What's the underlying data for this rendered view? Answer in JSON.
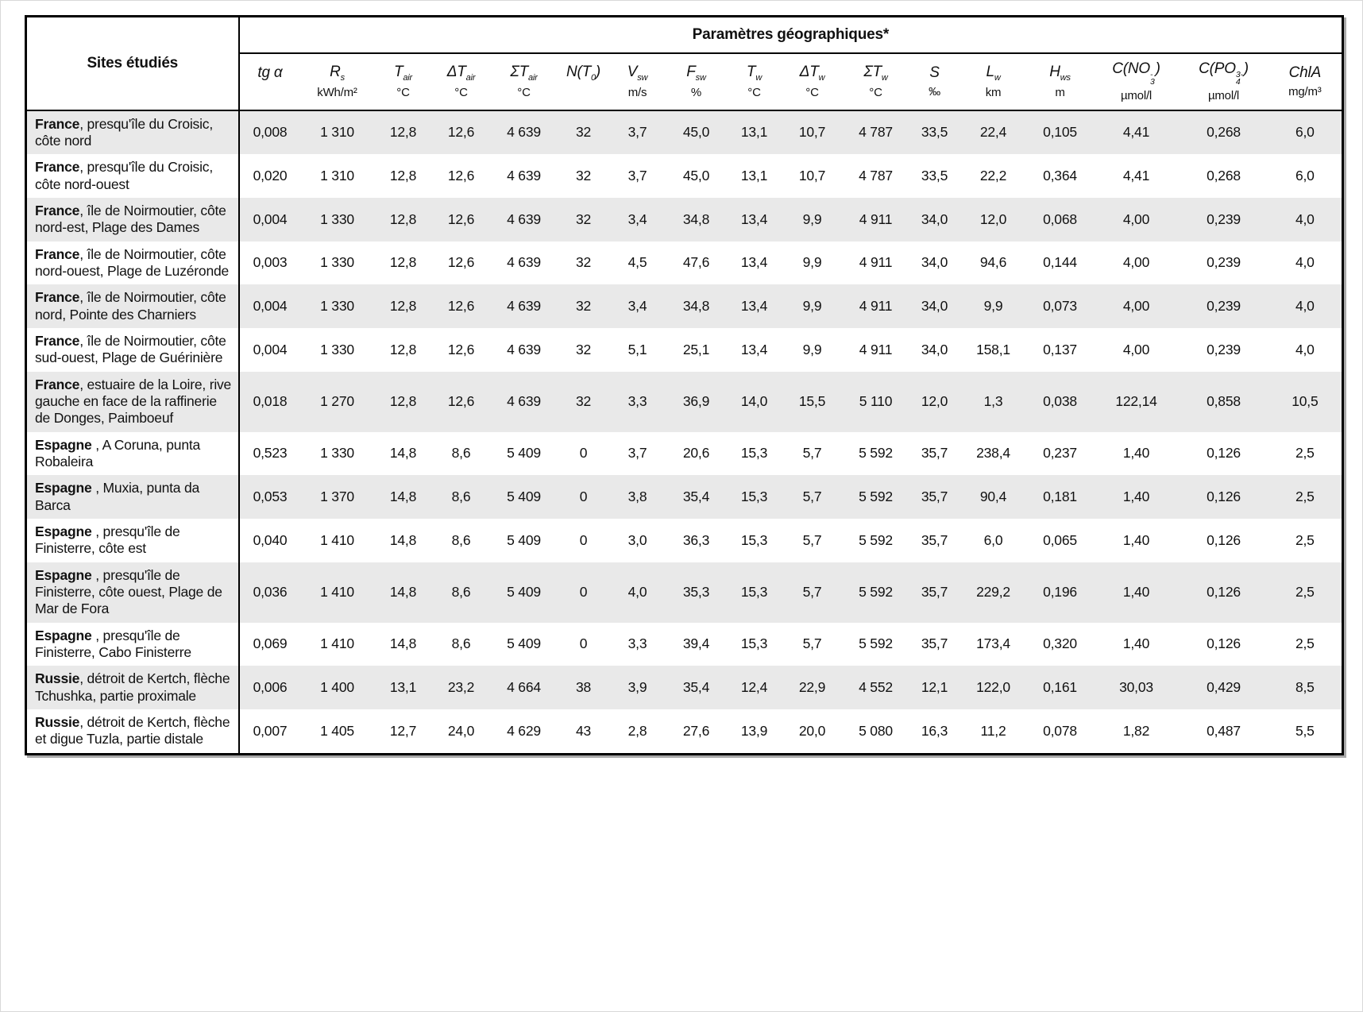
{
  "table": {
    "site_header": "Sites étudiés",
    "group_header": "Paramètres géographiques*",
    "columns": [
      {
        "name": "tg-alpha",
        "parts": [
          {
            "t": "tg α"
          }
        ],
        "unit": ""
      },
      {
        "name": "r-s",
        "parts": [
          {
            "t": "R"
          },
          {
            "sub": "s"
          }
        ],
        "unit": "kWh/m²"
      },
      {
        "name": "t-air",
        "parts": [
          {
            "t": "T"
          },
          {
            "sub": "air"
          }
        ],
        "unit": "°C"
      },
      {
        "name": "dt-air",
        "parts": [
          {
            "t": "ΔT"
          },
          {
            "sub": "air"
          }
        ],
        "unit": "°C"
      },
      {
        "name": "st-air",
        "parts": [
          {
            "t": "ΣT"
          },
          {
            "sub": "air"
          }
        ],
        "unit": "°C"
      },
      {
        "name": "n-t0",
        "parts": [
          {
            "t": "N(T"
          },
          {
            "sub": "0"
          },
          {
            "t": ")"
          }
        ],
        "unit": ""
      },
      {
        "name": "v-sw",
        "parts": [
          {
            "t": "V"
          },
          {
            "sub": "sw"
          }
        ],
        "unit": "m/s"
      },
      {
        "name": "f-sw",
        "parts": [
          {
            "t": "F"
          },
          {
            "sub": "sw"
          }
        ],
        "unit": "%"
      },
      {
        "name": "t-w",
        "parts": [
          {
            "t": "T"
          },
          {
            "sub": "w"
          }
        ],
        "unit": "°C"
      },
      {
        "name": "dt-w",
        "parts": [
          {
            "t": "ΔT"
          },
          {
            "sub": "w"
          }
        ],
        "unit": "°C"
      },
      {
        "name": "st-w",
        "parts": [
          {
            "t": "ΣT"
          },
          {
            "sub": "w"
          }
        ],
        "unit": "°C"
      },
      {
        "name": "s",
        "parts": [
          {
            "t": "S"
          }
        ],
        "unit": "‰"
      },
      {
        "name": "l-w",
        "parts": [
          {
            "t": "L"
          },
          {
            "sub": "w"
          }
        ],
        "unit": "km"
      },
      {
        "name": "h-ws",
        "parts": [
          {
            "t": "H"
          },
          {
            "sub": "ws"
          }
        ],
        "unit": "m"
      },
      {
        "name": "c-no3",
        "parts": [
          {
            "t": "C(NO"
          },
          {
            "stack": [
              "-",
              "3"
            ]
          },
          {
            "t": ")"
          }
        ],
        "unit": "µmol/l"
      },
      {
        "name": "c-po4",
        "parts": [
          {
            "t": "C(PO"
          },
          {
            "stack": [
              "3-",
              "4"
            ]
          },
          {
            "t": ")"
          }
        ],
        "unit": "µmol/l"
      },
      {
        "name": "chla",
        "parts": [
          {
            "t": "ChlA"
          }
        ],
        "unit": "mg/m³"
      }
    ],
    "rows": [
      {
        "country": "France",
        "rest": ", presqu'île du Croisic, côte nord",
        "values": [
          "0,008",
          "1 310",
          "12,8",
          "12,6",
          "4 639",
          "32",
          "3,7",
          "45,0",
          "13,1",
          "10,7",
          "4 787",
          "33,5",
          "22,4",
          "0,105",
          "4,41",
          "0,268",
          "6,0"
        ]
      },
      {
        "country": "France",
        "rest": ", presqu'île du Croisic, côte nord-ouest",
        "values": [
          "0,020",
          "1 310",
          "12,8",
          "12,6",
          "4 639",
          "32",
          "3,7",
          "45,0",
          "13,1",
          "10,7",
          "4 787",
          "33,5",
          "22,2",
          "0,364",
          "4,41",
          "0,268",
          "6,0"
        ]
      },
      {
        "country": "France",
        "rest": ", île de Noirmoutier, côte nord-est, Plage des Dames",
        "values": [
          "0,004",
          "1 330",
          "12,8",
          "12,6",
          "4 639",
          "32",
          "3,4",
          "34,8",
          "13,4",
          "9,9",
          "4 911",
          "34,0",
          "12,0",
          "0,068",
          "4,00",
          "0,239",
          "4,0"
        ]
      },
      {
        "country": "France",
        "rest": ", île de Noirmoutier, côte nord-ouest, Plage de Luzéronde",
        "values": [
          "0,003",
          "1 330",
          "12,8",
          "12,6",
          "4 639",
          "32",
          "4,5",
          "47,6",
          "13,4",
          "9,9",
          "4 911",
          "34,0",
          "94,6",
          "0,144",
          "4,00",
          "0,239",
          "4,0"
        ]
      },
      {
        "country": "France",
        "rest": ", île de Noirmoutier, côte nord, Pointe des Charniers",
        "values": [
          "0,004",
          "1 330",
          "12,8",
          "12,6",
          "4 639",
          "32",
          "3,4",
          "34,8",
          "13,4",
          "9,9",
          "4 911",
          "34,0",
          "9,9",
          "0,073",
          "4,00",
          "0,239",
          "4,0"
        ]
      },
      {
        "country": "France",
        "rest": ", île de Noirmoutier, côte sud-ouest, Plage de Guérinière",
        "values": [
          "0,004",
          "1 330",
          "12,8",
          "12,6",
          "4 639",
          "32",
          "5,1",
          "25,1",
          "13,4",
          "9,9",
          "4 911",
          "34,0",
          "158,1",
          "0,137",
          "4,00",
          "0,239",
          "4,0"
        ]
      },
      {
        "country": "France",
        "rest": ", estuaire de la Loire, rive gauche en face de la raffinerie de Donges, Paimboeuf",
        "values": [
          "0,018",
          "1 270",
          "12,8",
          "12,6",
          "4 639",
          "32",
          "3,3",
          "36,9",
          "14,0",
          "15,5",
          "5 110",
          "12,0",
          "1,3",
          "0,038",
          "122,14",
          "0,858",
          "10,5"
        ]
      },
      {
        "country": "Espagne",
        "rest": " , A Coruna, punta Robaleira",
        "values": [
          "0,523",
          "1 330",
          "14,8",
          "8,6",
          "5 409",
          "0",
          "3,7",
          "20,6",
          "15,3",
          "5,7",
          "5 592",
          "35,7",
          "238,4",
          "0,237",
          "1,40",
          "0,126",
          "2,5"
        ]
      },
      {
        "country": "Espagne",
        "rest": " , Muxia, punta da Barca",
        "values": [
          "0,053",
          "1 370",
          "14,8",
          "8,6",
          "5 409",
          "0",
          "3,8",
          "35,4",
          "15,3",
          "5,7",
          "5 592",
          "35,7",
          "90,4",
          "0,181",
          "1,40",
          "0,126",
          "2,5"
        ]
      },
      {
        "country": "Espagne",
        "rest": " , presqu'île de Finisterre, côte est",
        "values": [
          "0,040",
          "1 410",
          "14,8",
          "8,6",
          "5 409",
          "0",
          "3,0",
          "36,3",
          "15,3",
          "5,7",
          "5 592",
          "35,7",
          "6,0",
          "0,065",
          "1,40",
          "0,126",
          "2,5"
        ]
      },
      {
        "country": "Espagne",
        "rest": " , presqu'île de Finisterre, côte ouest, Plage de Mar de Fora",
        "values": [
          "0,036",
          "1 410",
          "14,8",
          "8,6",
          "5 409",
          "0",
          "4,0",
          "35,3",
          "15,3",
          "5,7",
          "5 592",
          "35,7",
          "229,2",
          "0,196",
          "1,40",
          "0,126",
          "2,5"
        ]
      },
      {
        "country": "Espagne",
        "rest": " , presqu'île de Finisterre, Cabo Finisterre",
        "values": [
          "0,069",
          "1 410",
          "14,8",
          "8,6",
          "5 409",
          "0",
          "3,3",
          "39,4",
          "15,3",
          "5,7",
          "5 592",
          "35,7",
          "173,4",
          "0,320",
          "1,40",
          "0,126",
          "2,5"
        ]
      },
      {
        "country": "Russie",
        "rest": ", détroit de Kertch, flèche Tchushka, partie proximale",
        "values": [
          "0,006",
          "1 400",
          "13,1",
          "23,2",
          "4 664",
          "38",
          "3,9",
          "35,4",
          "12,4",
          "22,9",
          "4 552",
          "12,1",
          "122,0",
          "0,161",
          "30,03",
          "0,429",
          "8,5"
        ]
      },
      {
        "country": "Russie",
        "rest": ", détroit de Kertch, flèche et digue Tuzla, partie distale",
        "values": [
          "0,007",
          "1 405",
          "12,7",
          "24,0",
          "4 629",
          "43",
          "2,8",
          "27,6",
          "13,9",
          "20,0",
          "5 080",
          "16,3",
          "11,2",
          "0,078",
          "1,82",
          "0,487",
          "5,5"
        ]
      }
    ]
  }
}
